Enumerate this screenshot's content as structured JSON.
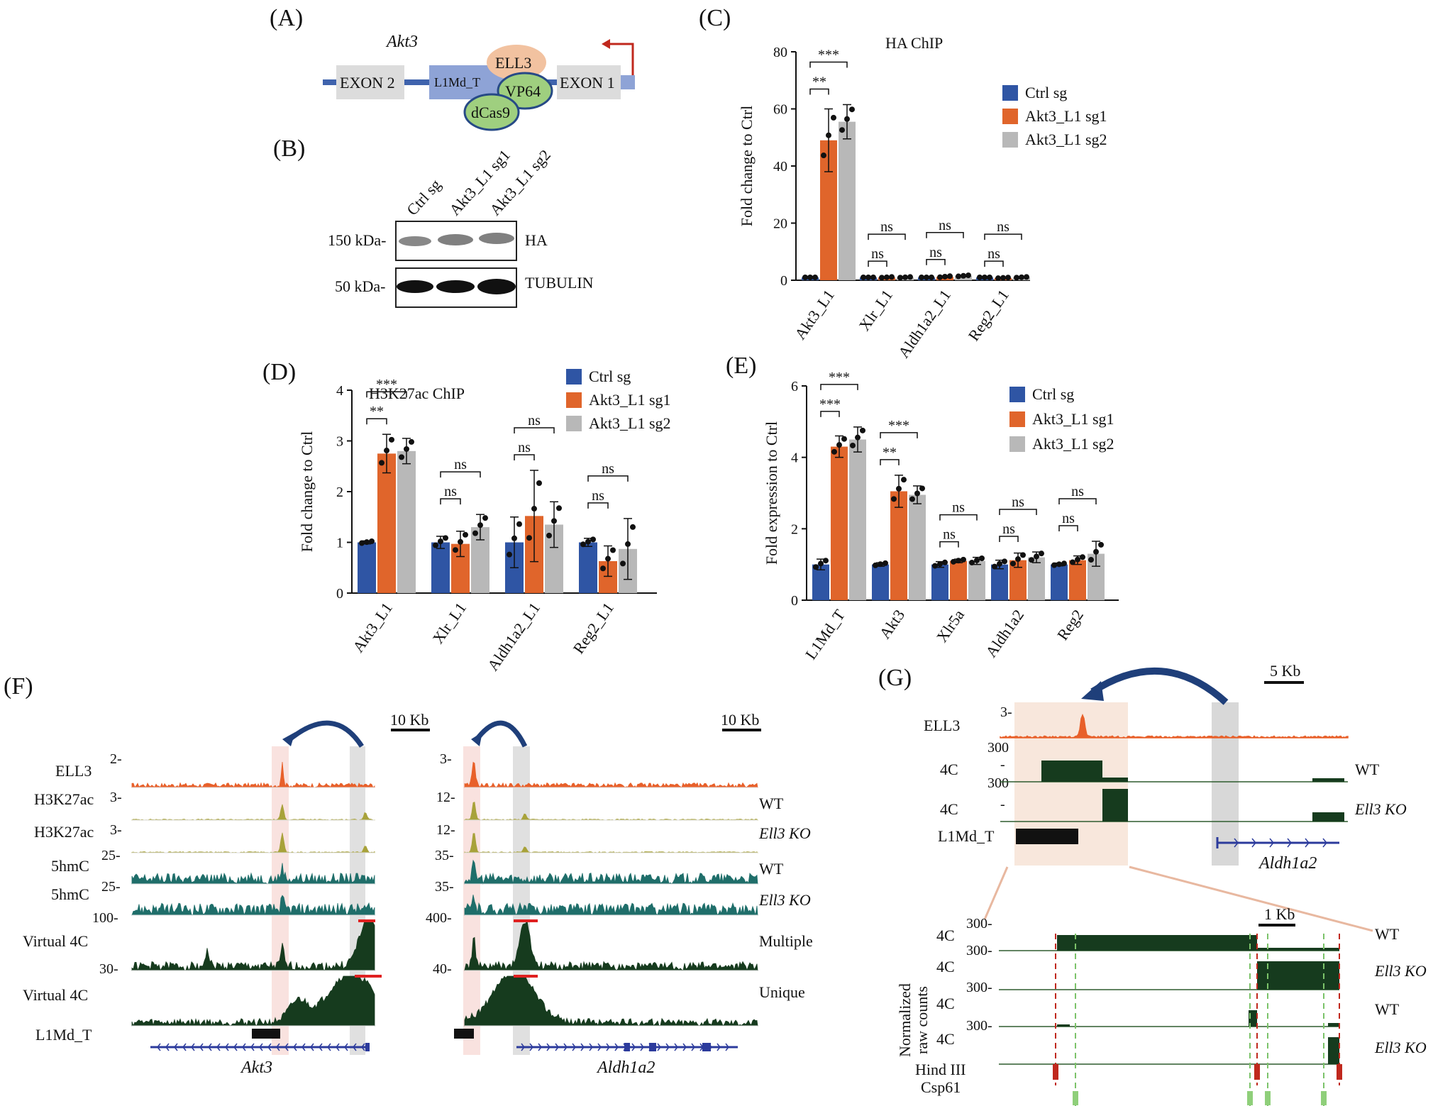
{
  "colors": {
    "ctrl": "#2f55a4",
    "sg1": "#e0652b",
    "sg2": "#b8b8b8",
    "ell3_track": "#e8602a",
    "h3k27ac_track": "#a8a23a",
    "hmc_track": "#1f6e6a",
    "virtual4c": "#163b1e",
    "gene": "#2c3b9c",
    "highlight_pink": "#f7d6d2",
    "highlight_grey": "#d8d8d8",
    "arc": "#1f3f7a"
  },
  "panelA": {
    "label": "(A)",
    "gene": "Akt3",
    "exon2": "EXON 2",
    "l1md": "L1Md_T",
    "ell3": "ELL3",
    "vp64": "VP64",
    "dcas9": "dCas9",
    "exon1": "EXON 1"
  },
  "panelB": {
    "label": "(B)",
    "lanes": [
      "Ctrl sg",
      "Akt3_L1 sg1",
      "Akt3_L1 sg2"
    ],
    "mw1": "150 kDa-",
    "mw2": "50 kDa-",
    "band1": "HA",
    "band2": "TUBULIN"
  },
  "chart_data": [
    {
      "panel": "(C)",
      "type": "bar",
      "title": "HA ChIP",
      "ylabel": "Fold change to Ctrl",
      "ylim": [
        0,
        80
      ],
      "yticks": [
        "0",
        "20",
        "40",
        "60",
        "80"
      ],
      "categories": [
        "Akt3_L1",
        "Xlr_L1",
        "Aldh1a2_L1",
        "Reg2_L1"
      ],
      "series": [
        {
          "name": "Ctrl sg",
          "values": [
            1,
            1,
            1,
            1
          ]
        },
        {
          "name": "Akt3_L1 sg1",
          "values": [
            49,
            1,
            1.2,
            0.8
          ]
        },
        {
          "name": "Akt3_L1 sg2",
          "values": [
            55.5,
            1,
            1.5,
            1
          ]
        }
      ],
      "errors": [
        [
          0,
          0,
          0,
          0
        ],
        [
          11,
          0.2,
          0.3,
          0.2
        ],
        [
          6,
          0.2,
          0.3,
          0.2
        ]
      ],
      "sig": [
        [
          "**",
          "***"
        ],
        [
          "ns",
          "ns"
        ],
        [
          "ns",
          "ns"
        ],
        [
          "ns",
          "ns"
        ]
      ],
      "legend": [
        "Ctrl sg",
        "Akt3_L1 sg1",
        "Akt3_L1 sg2"
      ]
    },
    {
      "panel": "(D)",
      "type": "bar",
      "title": "H3K27ac ChIP",
      "ylabel": "Fold change to Ctrl",
      "ylim": [
        0,
        4
      ],
      "yticks": [
        "0",
        "1",
        "2",
        "3",
        "4"
      ],
      "categories": [
        "Akt3_L1",
        "Xlr_L1",
        "Aldh1a2_L1",
        "Reg2_L1"
      ],
      "series": [
        {
          "name": "Ctrl sg",
          "values": [
            1,
            1,
            1,
            1
          ]
        },
        {
          "name": "Akt3_L1 sg1",
          "values": [
            2.75,
            0.97,
            1.52,
            0.63
          ]
        },
        {
          "name": "Akt3_L1 sg2",
          "values": [
            2.8,
            1.3,
            1.35,
            0.87
          ]
        }
      ],
      "errors": [
        [
          0.03,
          0.12,
          0.5,
          0.08
        ],
        [
          0.38,
          0.25,
          0.9,
          0.3
        ],
        [
          0.25,
          0.25,
          0.45,
          0.6
        ]
      ],
      "sig": [
        [
          "**",
          "***"
        ],
        [
          "ns",
          "ns"
        ],
        [
          "ns",
          "ns"
        ],
        [
          "ns",
          "ns"
        ]
      ],
      "legend": [
        "Ctrl sg",
        "Akt3_L1 sg1",
        "Akt3_L1 sg2"
      ]
    },
    {
      "panel": "(E)",
      "type": "bar",
      "title": "",
      "ylabel": "Fold expression to Ctrl",
      "ylim": [
        0,
        6
      ],
      "yticks": [
        "0",
        "2",
        "4",
        "6"
      ],
      "categories": [
        "L1Md_T",
        "Akt3",
        "Xlr5a",
        "Aldh1a2",
        "Reg2"
      ],
      "series": [
        {
          "name": "Ctrl sg",
          "values": [
            1,
            1,
            1,
            1,
            1
          ]
        },
        {
          "name": "Akt3_L1 sg1",
          "values": [
            4.3,
            3.05,
            1.1,
            1.12,
            1.12
          ]
        },
        {
          "name": "Akt3_L1 sg2",
          "values": [
            4.5,
            2.95,
            1.1,
            1.2,
            1.3
          ]
        }
      ],
      "errors": [
        [
          0.15,
          0.05,
          0.08,
          0.12,
          0.04
        ],
        [
          0.3,
          0.45,
          0.05,
          0.2,
          0.12
        ],
        [
          0.35,
          0.25,
          0.1,
          0.15,
          0.35
        ]
      ],
      "sig": [
        [
          "***",
          "***"
        ],
        [
          "**",
          "***"
        ],
        [
          "ns",
          "ns"
        ],
        [
          "ns",
          "ns"
        ],
        [
          "ns",
          "ns"
        ]
      ],
      "legend": [
        "Ctrl sg",
        "Akt3_L1 sg1",
        "Akt3_L1 sg2"
      ]
    }
  ],
  "panelF": {
    "label": "(F)",
    "scale": "10 Kb",
    "tracks": [
      "ELL3",
      "H3K27ac",
      "H3K27ac",
      "5hmC",
      "5hmC",
      "Virtual 4C",
      "Virtual 4C",
      "L1Md_T"
    ],
    "left_ranges": [
      "2-",
      "3-",
      "3-",
      "25-",
      "25-",
      "100-",
      "30-"
    ],
    "right_ranges": [
      "3-",
      "12-",
      "12-",
      "35-",
      "35-",
      "400-",
      "40-"
    ],
    "conditions": [
      "WT",
      "Ell3 KO",
      "WT",
      "Ell3 KO",
      "Multiple",
      "Unique"
    ],
    "gene_left": "Akt3",
    "gene_right": "Aldh1a2"
  },
  "panelG": {
    "label": "(G)",
    "scale_top": "5 Kb",
    "scale_bottom": "1 Kb",
    "ell3": "ELL3",
    "ell3_range": "3-",
    "range300": "300",
    "dash": "-",
    "fourc": "4C",
    "wt": "WT",
    "ko": "Ell3 KO",
    "l1md": "L1Md_T",
    "gene": "Aldh1a2",
    "bottom_range": "300-",
    "ylabel1": "Normalized",
    "ylabel2": "raw counts",
    "hind": "Hind III",
    "csp": "Csp61"
  }
}
